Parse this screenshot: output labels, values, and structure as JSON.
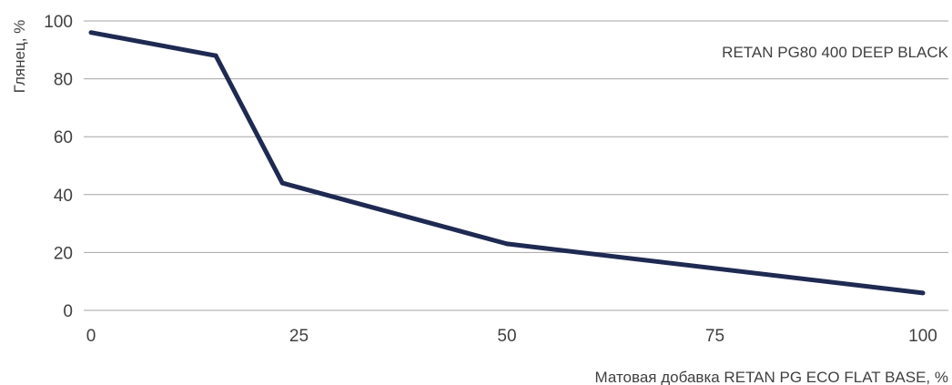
{
  "chart_data": {
    "type": "line",
    "title": "",
    "xlabel": "Матовая добавка RETAN PG ECO FLAT BASE, %",
    "ylabel": "Глянец, %",
    "xlim": [
      0,
      100
    ],
    "ylim": [
      0,
      100
    ],
    "x_ticks": [
      0,
      25,
      50,
      75,
      100
    ],
    "y_ticks": [
      0,
      20,
      40,
      60,
      80,
      100
    ],
    "grid": "horizontal",
    "series_label": "RETAN PG80 400 DEEP BLACK",
    "line_color": "#1f2a52",
    "series": [
      {
        "name": "RETAN PG80 400 DEEP BLACK",
        "x": [
          0,
          15,
          23,
          50,
          100
        ],
        "values": [
          96,
          88,
          44,
          23,
          6
        ]
      }
    ]
  }
}
